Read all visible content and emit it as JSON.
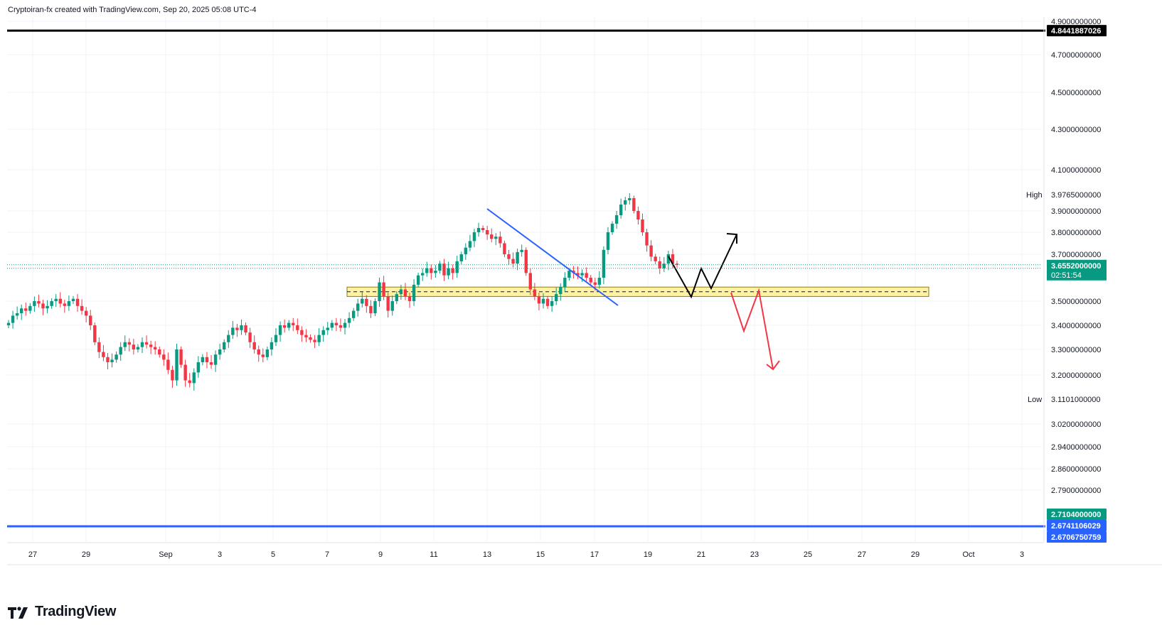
{
  "header": {
    "caption": "Cryptoiran-fx created with TradingView.com, Sep 20, 2025 05:08 UTC-4"
  },
  "brand": {
    "name": "TradingView"
  },
  "colors": {
    "up": "#089981",
    "down": "#f23645",
    "trendline": "#2962ff",
    "zone_fill": "#fff3a3",
    "zone_border": "#8a7a1a",
    "top_line": "#000000",
    "bottom_line": "#2962ff",
    "price_badge": "#089981",
    "projection_bull": "#000000",
    "projection_bear": "#f23645"
  },
  "chart_data": {
    "type": "candlestick",
    "title": "",
    "x_ticks": [
      "27",
      "29",
      "Sep",
      "3",
      "5",
      "7",
      "9",
      "11",
      "13",
      "15",
      "17",
      "19",
      "21",
      "23",
      "25",
      "27",
      "29",
      "Oct",
      "3"
    ],
    "y_ticks": [
      "4.9000000000",
      "4.7000000000",
      "4.5000000000",
      "4.3000000000",
      "4.1000000000",
      "3.9000000000",
      "3.8000000000",
      "3.7000000000",
      "3.5000000000",
      "3.4000000000",
      "3.3000000000",
      "3.2000000000",
      "3.0200000000",
      "2.9400000000",
      "2.8600000000",
      "2.7900000000"
    ],
    "y_tick_values": [
      4.9,
      4.7,
      4.5,
      4.3,
      4.1,
      3.9,
      3.8,
      3.7,
      3.5,
      3.4,
      3.3,
      3.2,
      3.02,
      2.94,
      2.86,
      2.79
    ],
    "high": {
      "label": "High",
      "value": "3.9765000000"
    },
    "low": {
      "label": "Low",
      "value": "3.1101000000"
    },
    "current_price": {
      "value": "3.6552000000",
      "countdown": "02:51:54"
    },
    "levels": [
      {
        "name": "top-horizontal-line",
        "value": "4.8441887026",
        "color": "#000000"
      },
      {
        "name": "bottom-horizontal-line-1",
        "value": "2.6741106029",
        "color": "#2962ff"
      },
      {
        "name": "bottom-horizontal-line-2",
        "value": "2.6706750759",
        "color": "#2962ff"
      },
      {
        "name": "low-badge",
        "value": "2.7104000000",
        "color": "#089981"
      }
    ],
    "support_zone": {
      "top": 3.56,
      "bottom": 3.52,
      "mid": 3.54
    },
    "ylim": [
      2.66,
      4.92
    ],
    "series_close": [
      3.41,
      3.44,
      3.45,
      3.47,
      3.46,
      3.48,
      3.5,
      3.49,
      3.47,
      3.48,
      3.5,
      3.51,
      3.49,
      3.48,
      3.5,
      3.51,
      3.48,
      3.46,
      3.44,
      3.4,
      3.33,
      3.29,
      3.27,
      3.25,
      3.26,
      3.28,
      3.31,
      3.33,
      3.32,
      3.3,
      3.31,
      3.33,
      3.32,
      3.31,
      3.3,
      3.28,
      3.26,
      3.22,
      3.18,
      3.3,
      3.24,
      3.18,
      3.17,
      3.21,
      3.25,
      3.27,
      3.25,
      3.24,
      3.28,
      3.3,
      3.33,
      3.36,
      3.39,
      3.38,
      3.4,
      3.37,
      3.33,
      3.3,
      3.28,
      3.27,
      3.3,
      3.33,
      3.36,
      3.4,
      3.39,
      3.41,
      3.4,
      3.38,
      3.36,
      3.35,
      3.34,
      3.33,
      3.36,
      3.38,
      3.39,
      3.41,
      3.4,
      3.39,
      3.41,
      3.43,
      3.46,
      3.49,
      3.51,
      3.48,
      3.45,
      3.5,
      3.58,
      3.52,
      3.46,
      3.5,
      3.53,
      3.55,
      3.52,
      3.5,
      3.57,
      3.61,
      3.62,
      3.64,
      3.62,
      3.63,
      3.66,
      3.61,
      3.64,
      3.62,
      3.67,
      3.7,
      3.73,
      3.76,
      3.8,
      3.82,
      3.81,
      3.79,
      3.77,
      3.78,
      3.75,
      3.7,
      3.68,
      3.66,
      3.71,
      3.72,
      3.62,
      3.55,
      3.52,
      3.49,
      3.51,
      3.48,
      3.5,
      3.53,
      3.56,
      3.6,
      3.63,
      3.62,
      3.61,
      3.62,
      3.6,
      3.58,
      3.57,
      3.6,
      3.72,
      3.8,
      3.84,
      3.88,
      3.93,
      3.95,
      3.96,
      3.9,
      3.86,
      3.8,
      3.74,
      3.69,
      3.67,
      3.64,
      3.66,
      3.7,
      3.66,
      3.655
    ]
  }
}
